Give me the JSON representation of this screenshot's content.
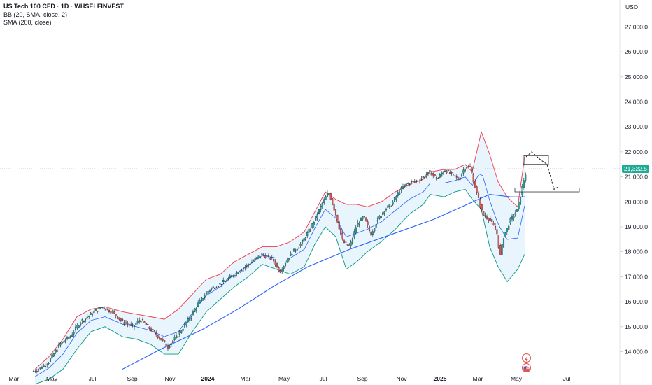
{
  "legend": {
    "symbol": "US Tech 100 CFD · 1D · WHSELFINVEST",
    "bb": "BB (20, SMA, close, 2)",
    "sma": "SMA (200, close)"
  },
  "currency": "USD",
  "last_price": "21,322.5",
  "colors": {
    "up": "#26a69a",
    "down": "#ef5350",
    "candle_border": "#131722",
    "bb_upper": "#f23645",
    "bb_lower": "#089981",
    "bb_fill": "#e3f2fd",
    "sma": "#2962ff",
    "bb_mid": "#2962ff",
    "last_price_bg": "#22ab94"
  },
  "chart_data": {
    "type": "candlestick",
    "x_labels": [
      "Mar",
      "May",
      "Jul",
      "Sep",
      "Nov",
      "2024",
      "Mar",
      "May",
      "Jul",
      "Sep",
      "Nov",
      "2025",
      "Mar",
      "May",
      "Jul"
    ],
    "y_ticks": [
      "14,000.0",
      "15,000.0",
      "16,000.0",
      "17,000.0",
      "18,000.0",
      "19,000.0",
      "20,000.0",
      "21,000.0",
      "22,000.0",
      "23,000.0",
      "24,000.0",
      "25,000.0",
      "26,000.0",
      "27,000.0"
    ],
    "ylim": [
      13200,
      27500
    ],
    "close_path": [
      [
        0,
        12900
      ],
      [
        20,
        13000
      ],
      [
        40,
        13150
      ],
      [
        55,
        13300
      ],
      [
        70,
        13600
      ],
      [
        85,
        14300
      ],
      [
        100,
        14600
      ],
      [
        115,
        15200
      ],
      [
        130,
        15500
      ],
      [
        145,
        15800
      ],
      [
        160,
        15600
      ],
      [
        175,
        15200
      ],
      [
        190,
        15000
      ],
      [
        200,
        15300
      ],
      [
        215,
        14900
      ],
      [
        230,
        14500
      ],
      [
        240,
        14200
      ],
      [
        255,
        14700
      ],
      [
        270,
        15300
      ],
      [
        285,
        16000
      ],
      [
        300,
        16500
      ],
      [
        320,
        16800
      ],
      [
        340,
        17200
      ],
      [
        360,
        17600
      ],
      [
        375,
        17900
      ],
      [
        390,
        17700
      ],
      [
        400,
        17200
      ],
      [
        415,
        17900
      ],
      [
        430,
        18300
      ],
      [
        445,
        19000
      ],
      [
        460,
        19900
      ],
      [
        470,
        20400
      ],
      [
        480,
        19500
      ],
      [
        490,
        18400
      ],
      [
        500,
        18200
      ],
      [
        510,
        19100
      ],
      [
        520,
        19400
      ],
      [
        530,
        18700
      ],
      [
        540,
        19300
      ],
      [
        550,
        19700
      ],
      [
        560,
        19900
      ],
      [
        570,
        20400
      ],
      [
        580,
        20700
      ],
      [
        590,
        20800
      ],
      [
        600,
        20900
      ],
      [
        615,
        21200
      ],
      [
        625,
        20900
      ],
      [
        635,
        21300
      ],
      [
        645,
        21100
      ],
      [
        655,
        20900
      ],
      [
        665,
        21400
      ],
      [
        672,
        21400
      ],
      [
        680,
        20500
      ],
      [
        690,
        19500
      ],
      [
        700,
        19300
      ],
      [
        710,
        18800
      ],
      [
        715,
        17800
      ],
      [
        720,
        18600
      ],
      [
        730,
        19300
      ],
      [
        740,
        19700
      ],
      [
        748,
        20800
      ],
      [
        753,
        21300
      ]
    ],
    "bb_upper": [
      [
        50,
        13300
      ],
      [
        70,
        13800
      ],
      [
        90,
        14500
      ],
      [
        110,
        15400
      ],
      [
        130,
        15700
      ],
      [
        150,
        15800
      ],
      [
        175,
        15600
      ],
      [
        195,
        15500
      ],
      [
        215,
        15400
      ],
      [
        235,
        15300
      ],
      [
        255,
        15700
      ],
      [
        275,
        16300
      ],
      [
        295,
        16900
      ],
      [
        315,
        17100
      ],
      [
        335,
        17600
      ],
      [
        355,
        17900
      ],
      [
        375,
        18200
      ],
      [
        395,
        18200
      ],
      [
        415,
        18400
      ],
      [
        435,
        18800
      ],
      [
        450,
        19600
      ],
      [
        465,
        20400
      ],
      [
        480,
        20100
      ],
      [
        495,
        19900
      ],
      [
        510,
        19900
      ],
      [
        525,
        19800
      ],
      [
        545,
        20000
      ],
      [
        565,
        20400
      ],
      [
        585,
        20700
      ],
      [
        605,
        20900
      ],
      [
        615,
        21200
      ],
      [
        635,
        21300
      ],
      [
        650,
        21300
      ],
      [
        665,
        21500
      ],
      [
        675,
        21200
      ],
      [
        688,
        22800
      ],
      [
        700,
        21900
      ],
      [
        712,
        20800
      ],
      [
        725,
        20200
      ],
      [
        740,
        19800
      ],
      [
        750,
        21800
      ]
    ],
    "bb_lower": [
      [
        50,
        12700
      ],
      [
        70,
        12900
      ],
      [
        90,
        13300
      ],
      [
        110,
        14100
      ],
      [
        130,
        14800
      ],
      [
        150,
        15000
      ],
      [
        175,
        14600
      ],
      [
        195,
        14500
      ],
      [
        215,
        14300
      ],
      [
        235,
        13900
      ],
      [
        255,
        13900
      ],
      [
        275,
        14800
      ],
      [
        295,
        15600
      ],
      [
        315,
        16100
      ],
      [
        335,
        16600
      ],
      [
        355,
        17000
      ],
      [
        375,
        17500
      ],
      [
        395,
        17300
      ],
      [
        415,
        17100
      ],
      [
        435,
        17400
      ],
      [
        450,
        18300
      ],
      [
        465,
        19000
      ],
      [
        480,
        18600
      ],
      [
        495,
        17300
      ],
      [
        510,
        17600
      ],
      [
        525,
        18000
      ],
      [
        545,
        18400
      ],
      [
        565,
        18900
      ],
      [
        585,
        19500
      ],
      [
        605,
        19900
      ],
      [
        615,
        20300
      ],
      [
        635,
        20200
      ],
      [
        650,
        20400
      ],
      [
        665,
        20500
      ],
      [
        675,
        20100
      ],
      [
        688,
        19700
      ],
      [
        700,
        18200
      ],
      [
        712,
        17400
      ],
      [
        725,
        16800
      ],
      [
        740,
        17300
      ],
      [
        750,
        17900
      ]
    ],
    "sma200": [
      [
        175,
        13300
      ],
      [
        230,
        14100
      ],
      [
        290,
        14900
      ],
      [
        340,
        15700
      ],
      [
        390,
        16600
      ],
      [
        440,
        17400
      ],
      [
        500,
        18100
      ],
      [
        560,
        18700
      ],
      [
        620,
        19300
      ],
      [
        660,
        19800
      ],
      [
        700,
        20300
      ],
      [
        730,
        20200
      ],
      [
        750,
        20200
      ]
    ],
    "boxes": [
      {
        "from_x": 749,
        "to_x": 784,
        "top": 21850,
        "bottom": 21500
      },
      {
        "from_x": 736,
        "to_x": 828,
        "top": 20550,
        "bottom": 20400
      }
    ],
    "projection": [
      [
        752,
        21800
      ],
      [
        760,
        22000
      ],
      [
        772,
        21700
      ],
      [
        782,
        21500
      ],
      [
        792,
        20500
      ],
      [
        798,
        20600
      ]
    ],
    "last_price": 21322.5
  }
}
